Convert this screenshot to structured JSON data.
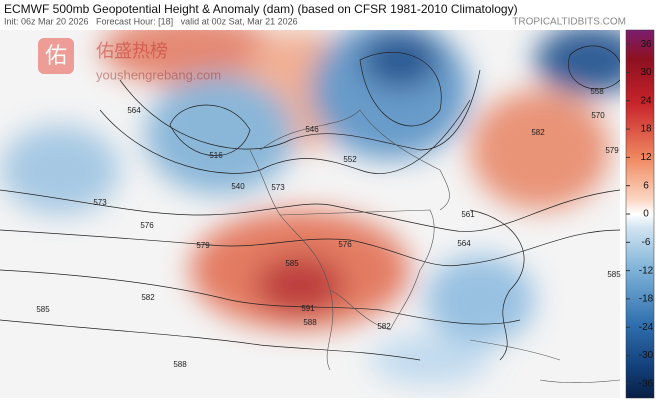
{
  "header": {
    "title": "ECMWF 500mb Geopotential Height & Anomaly (dam) (based on CFSR 1981-2010 Climatology)",
    "subtitle": "Init: 06z Mar 20 2026   Forecast Hour: [18]   valid at 00z Sat, Mar 21 2026",
    "source": "TROPICALTIDBITS.COM"
  },
  "watermark": {
    "logo": "佑",
    "name": "佑盛热榜",
    "url": "youshengrebang.com"
  },
  "colorbar": {
    "clim": [
      -39,
      39
    ],
    "ticks": [
      36,
      30,
      24,
      18,
      12,
      6,
      0,
      -6,
      -12,
      -18,
      -24,
      -30,
      -36
    ]
  },
  "contour_labels": [
    "564",
    "573",
    "576",
    "579",
    "582",
    "585",
    "588",
    "591",
    "540",
    "516",
    "558",
    "570",
    "579",
    "582",
    "585",
    "564",
    "561",
    "552",
    "546",
    "573",
    "576",
    "582",
    "585",
    "588"
  ]
}
